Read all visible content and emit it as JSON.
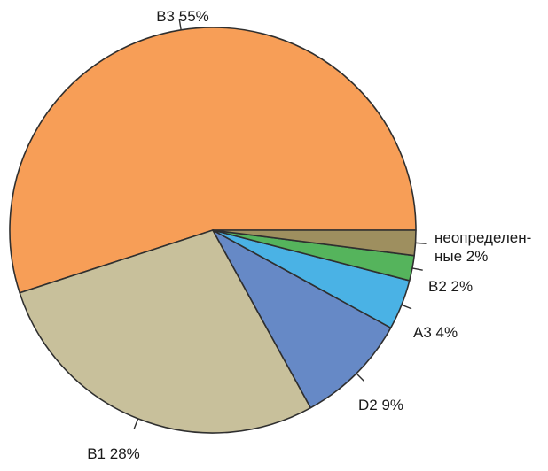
{
  "chart_data": {
    "type": "pie",
    "title": "",
    "start_angle_deg": 0,
    "direction": "counterclockwise",
    "slices": [
      {
        "label": "B3",
        "value": 55,
        "value_text": "55%",
        "color": "#F79E57"
      },
      {
        "label": "B1",
        "value": 28,
        "value_text": "28%",
        "color": "#C8C09B"
      },
      {
        "label": "D2",
        "value": 9,
        "value_text": "9%",
        "color": "#6689C6"
      },
      {
        "label": "A3",
        "value": 4,
        "value_text": "4%",
        "color": "#4AB2E5"
      },
      {
        "label": "B2",
        "value": 2,
        "value_text": "2%",
        "color": "#55B45C"
      },
      {
        "label": "неопределен-\nные",
        "value": 2,
        "value_text": "2%",
        "color": "#9E8F5F"
      }
    ]
  }
}
